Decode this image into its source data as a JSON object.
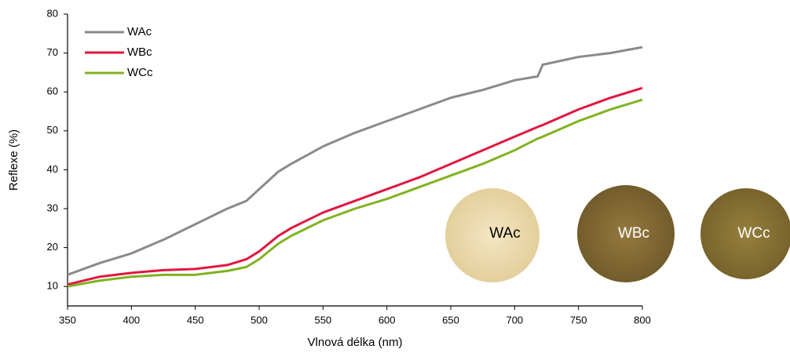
{
  "chart_data": {
    "type": "line",
    "xlabel": "Vlnová délka (nm)",
    "ylabel": "Reflexe (%)",
    "x": [
      350,
      375,
      400,
      425,
      450,
      475,
      490,
      500,
      515,
      525,
      550,
      575,
      600,
      625,
      650,
      675,
      700,
      718,
      722,
      750,
      775,
      800
    ],
    "series": [
      {
        "name": "WAc",
        "color": "#8a8a8a",
        "values": [
          13,
          16,
          18.5,
          22,
          26,
          30,
          32,
          35,
          39.5,
          41.5,
          46,
          49.5,
          52.5,
          55.5,
          58.5,
          60.5,
          63,
          64,
          67,
          69,
          70,
          71.5
        ]
      },
      {
        "name": "WBc",
        "color": "#e0173f",
        "values": [
          10.5,
          12.5,
          13.5,
          14.2,
          14.5,
          15.5,
          17,
          19,
          23,
          25,
          29,
          32,
          35,
          38,
          41.5,
          45,
          48.5,
          51,
          51.5,
          55.5,
          58.5,
          61
        ]
      },
      {
        "name": "WCc",
        "color": "#7fb320",
        "values": [
          10,
          11.5,
          12.5,
          13,
          13,
          14,
          15,
          17,
          21,
          23,
          27,
          30,
          32.5,
          35.5,
          38.5,
          41.5,
          45,
          48,
          48.5,
          52.5,
          55.5,
          58
        ]
      }
    ],
    "xlim": [
      350,
      800
    ],
    "xticks": [
      350,
      400,
      450,
      500,
      550,
      600,
      650,
      700,
      750,
      800
    ],
    "ylim": [
      5,
      80
    ],
    "yticks": [
      10,
      20,
      30,
      40,
      50,
      60,
      70,
      80
    ],
    "legend": "upper-left",
    "annotations": [
      "WAc",
      "WBc",
      "WCc"
    ]
  }
}
